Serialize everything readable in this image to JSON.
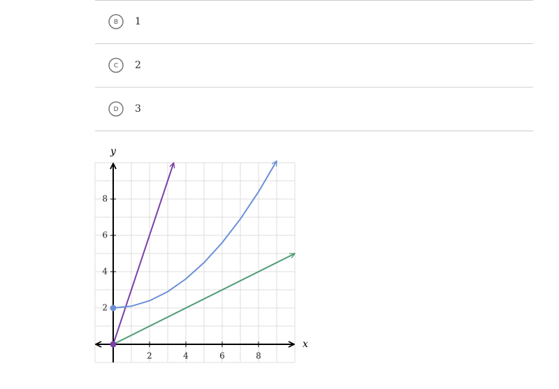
{
  "choices": [
    {
      "letter": "B",
      "text": "1"
    },
    {
      "letter": "C",
      "text": "2"
    },
    {
      "letter": "D",
      "text": "3"
    }
  ],
  "chart_data": {
    "type": "line",
    "x_label": "x",
    "y_label": "y",
    "xlim": [
      -1,
      10
    ],
    "ylim": [
      -1,
      10
    ],
    "xticks": [
      2,
      4,
      6,
      8
    ],
    "yticks": [
      2,
      4,
      6,
      8
    ],
    "grid": true,
    "xgrid": [
      -1,
      0,
      1,
      2,
      3,
      4,
      5,
      6,
      7,
      8,
      9,
      10
    ],
    "ygrid": [
      -1,
      0,
      1,
      2,
      3,
      4,
      5,
      6,
      7,
      8,
      9,
      10
    ],
    "series": [
      {
        "color": "#7b3fa6",
        "x": [
          0,
          3.33
        ],
        "values": [
          0,
          10
        ]
      },
      {
        "color": "#6b8fd6",
        "x": [
          0,
          1,
          2,
          3,
          4,
          5,
          6,
          7,
          8,
          9
        ],
        "values": [
          2,
          2.1,
          2.4,
          2.9,
          3.6,
          4.5,
          5.6,
          6.9,
          8.4,
          10.1
        ]
      },
      {
        "color": "#4e9c72",
        "x": [
          0,
          10
        ],
        "values": [
          0,
          5
        ]
      }
    ]
  }
}
